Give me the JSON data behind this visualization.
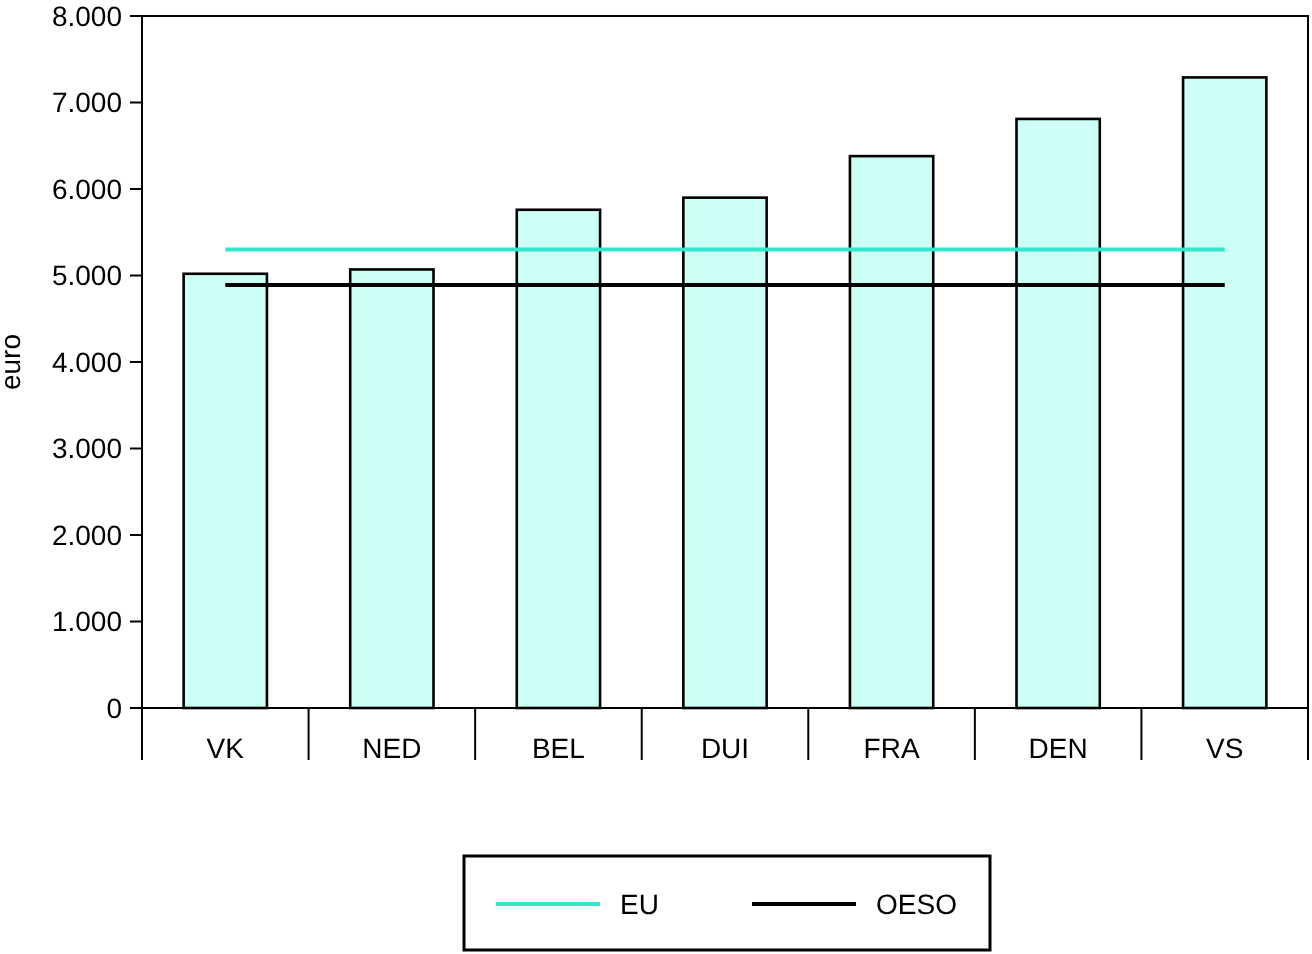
{
  "chart_data": {
    "type": "bar",
    "ylabel": "euro",
    "categories": [
      "VK",
      "NED",
      "BEL",
      "DUI",
      "FRA",
      "DEN",
      "VS"
    ],
    "series": [
      {
        "color": "#ccfff5",
        "values": [
          5020,
          5070,
          5760,
          5900,
          6380,
          6810,
          7290
        ]
      },
      {
        "type": "line",
        "name": "EU",
        "color": "#33e6cc",
        "values": [
          5300,
          5300,
          5300,
          5300,
          5300,
          5300,
          5300
        ]
      },
      {
        "type": "line",
        "name": "OESO",
        "color": "#000000",
        "values": [
          4890,
          4890,
          4890,
          4890,
          4890,
          4890,
          4890
        ]
      }
    ],
    "ylim": [
      0,
      8000
    ],
    "yticks": [
      {
        "value": 0,
        "label": "0"
      },
      {
        "value": 1000,
        "label": "1.000"
      },
      {
        "value": 2000,
        "label": "2.000"
      },
      {
        "value": 3000,
        "label": "3.000"
      },
      {
        "value": 4000,
        "label": "4.000"
      },
      {
        "value": 5000,
        "label": "5.000"
      },
      {
        "value": 6000,
        "label": "6.000"
      },
      {
        "value": 7000,
        "label": "7.000"
      },
      {
        "value": 8000,
        "label": "8.000"
      }
    ],
    "grid": false,
    "legend": "bottom"
  }
}
